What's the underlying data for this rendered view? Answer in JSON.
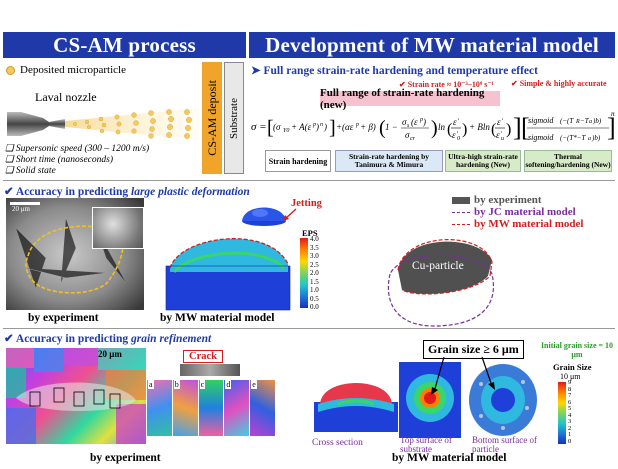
{
  "headers": {
    "left": "CS-AM process",
    "right": "Development of MW material model"
  },
  "process": {
    "legend_particle": "Deposited microparticle",
    "nozzle_label": "Laval nozzle",
    "deposit_label": "CS-AM deposit",
    "substrate_label": "Substrate",
    "bullets": [
      "Supersonic speed (300 – 1200 m/s)",
      "Short time (nanoseconds)",
      "Solid state"
    ]
  },
  "model": {
    "title": "Full range strain-rate hardening and temperature effect",
    "check_strain_rate": "Strain rate ≈ 10⁻³–10⁹ s⁻¹",
    "check_simple": "Simple & highly accurate",
    "full_range": "Full range of strain-rate hardening (new)",
    "labels": {
      "strain_hardening": "Strain hardening",
      "tanimura": "Strain-rate hardening by Tanimura & Mimura",
      "ultra_high": "Ultra-high strain-rate hardening (New)",
      "thermal": "Thermal softening/hardening (New)"
    }
  },
  "deformation": {
    "heading_prefix": "Accuracy in predicting ",
    "heading_emph": "large plastic deformation",
    "scale_bar": "20 μm",
    "caption_experiment": "by experiment",
    "caption_model": "by MW material model",
    "jetting": "Jetting",
    "eps_title": "EPS",
    "eps_ticks": [
      "4.0",
      "3.5",
      "3.0",
      "2.5",
      "2.0",
      "1.5",
      "1.0",
      "0.5",
      "0.0"
    ],
    "legend": {
      "experiment": "by experiment",
      "jc": "by JC material model",
      "mw": "by MW material model"
    },
    "particle_label": "Cu-particle"
  },
  "grain": {
    "heading_prefix": "Accuracy in predicting ",
    "heading_emph": "grain refinement",
    "scale_bar": "20 μm",
    "crack": "Crack",
    "panel_letters": [
      "a",
      "b",
      "c",
      "d",
      "e"
    ],
    "caption_experiment": "by experiment",
    "caption_model": "by MW material model",
    "grain_size_callout": "Grain size ≥ 6 μm",
    "initial_grain": "Initial grain size = 10 μm",
    "grain_scale_title": "Grain Size",
    "grain_scale_unit": "10 μm",
    "grain_ticks": [
      "9",
      "8",
      "7",
      "6",
      "5",
      "4",
      "3",
      "2",
      "1",
      "0"
    ],
    "cross_section": "Cross section",
    "top_surface": "Top surface of substrate",
    "bottom_surface": "Bottom surface of particle"
  },
  "colors": {
    "header_blue": "#1f3aa8",
    "accent_red": "#d41d1d",
    "jc_purple": "#7a2e9c",
    "deposit_orange": "#f0a52a"
  }
}
